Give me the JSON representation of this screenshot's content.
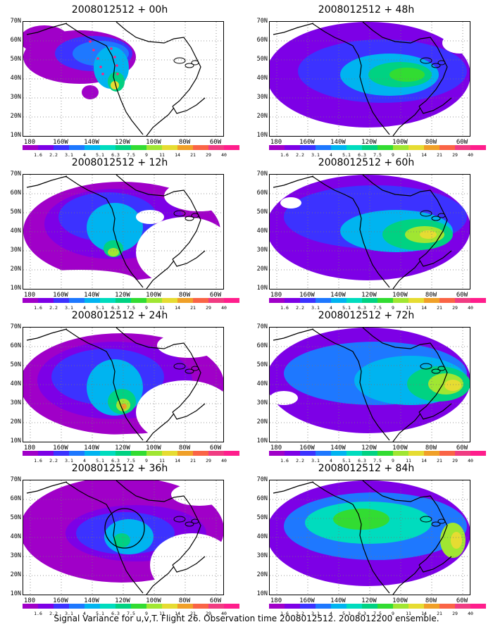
{
  "panels": [
    {
      "title": "2008012512 + 00h",
      "col": 0,
      "row": 0,
      "variant": 0
    },
    {
      "title": "2008012512 + 12h",
      "col": 0,
      "row": 1,
      "variant": 1
    },
    {
      "title": "2008012512 + 24h",
      "col": 0,
      "row": 2,
      "variant": 2
    },
    {
      "title": "2008012512 + 36h",
      "col": 0,
      "row": 3,
      "variant": 3
    },
    {
      "title": "2008012512 + 48h",
      "col": 1,
      "row": 0,
      "variant": 4
    },
    {
      "title": "2008012512 + 60h",
      "col": 1,
      "row": 1,
      "variant": 5
    },
    {
      "title": "2008012512 + 72h",
      "col": 1,
      "row": 2,
      "variant": 6
    },
    {
      "title": "2008012512 + 84h",
      "col": 1,
      "row": 3,
      "variant": 7
    }
  ],
  "y_axis_labels": [
    "70N",
    "60N",
    "50N",
    "40N",
    "30N",
    "20N",
    "10N"
  ],
  "x_axis_labels": [
    "180",
    "160W",
    "140W",
    "120W",
    "100W",
    "80W",
    "60W"
  ],
  "colorbar": {
    "labels": [
      "1.6",
      "2.2",
      "3.1",
      "4",
      "5.1",
      "6.3",
      "7.5",
      "9",
      "11",
      "14",
      "21",
      "29",
      "40"
    ],
    "colors": [
      "#a000c8",
      "#7d00e6",
      "#3c32ff",
      "#1e78ff",
      "#00b4f0",
      "#00dcbe",
      "#00d282",
      "#32dc32",
      "#a0e632",
      "#e6dc32",
      "#f0a028",
      "#fa6446",
      "#f03c82",
      "#ff1e8c"
    ]
  },
  "caption": "Signal Variance for u,v,T. Flight 26. Observation time 2008012512. 2008012200 ensemble."
}
